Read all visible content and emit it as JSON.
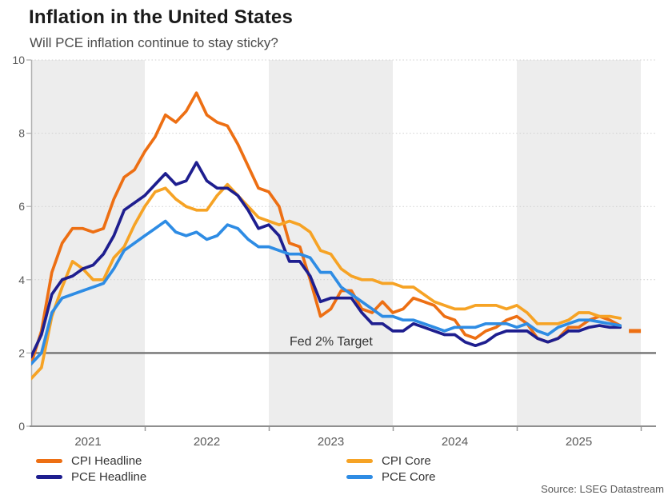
{
  "header": {
    "title": "Inflation in the United States",
    "subtitle": "Will PCE inflation continue to stay sticky?"
  },
  "source": "Source: LSEG Datastream",
  "chart_data": {
    "type": "line",
    "x_unit": "month",
    "x_start": "2021-01",
    "years": [
      "2021",
      "2022",
      "2023",
      "2024",
      "2025"
    ],
    "ylim": [
      0,
      10
    ],
    "yticks": [
      0,
      2,
      4,
      6,
      8,
      10
    ],
    "grid": "dotted-horizontal",
    "legend_position": "bottom",
    "band_colors": {
      "shaded": "#EDEDED",
      "plain": "#FFFFFF"
    },
    "axis_color": "#9A9A9A",
    "label_color": "#595959",
    "target_line": {
      "value": 2,
      "label": "Fed 2% Target",
      "color": "#737373"
    },
    "series": [
      {
        "name": "CPI Headline",
        "color": "#ED6F13",
        "values": [
          1.4,
          1.7,
          2.6,
          4.2,
          5.0,
          5.4,
          5.4,
          5.3,
          5.4,
          6.2,
          6.8,
          7.0,
          7.5,
          7.9,
          8.5,
          8.3,
          8.6,
          9.1,
          8.5,
          8.3,
          8.2,
          7.7,
          7.1,
          6.5,
          6.4,
          6.0,
          5.0,
          4.9,
          4.0,
          3.0,
          3.2,
          3.7,
          3.7,
          3.2,
          3.1,
          3.4,
          3.1,
          3.2,
          3.5,
          3.4,
          3.3,
          3.0,
          2.9,
          2.5,
          2.4,
          2.6,
          2.7,
          2.9,
          3.0,
          2.8,
          2.4,
          2.3,
          2.4,
          2.7,
          2.7,
          2.9,
          3.0,
          2.9,
          2.75
        ],
        "end_dash": {
          "month_index": 59,
          "value": 2.6
        }
      },
      {
        "name": "CPI Core",
        "color": "#F6A325",
        "values": [
          1.4,
          1.3,
          1.6,
          3.0,
          3.8,
          4.5,
          4.3,
          4.0,
          4.0,
          4.6,
          4.9,
          5.5,
          6.0,
          6.4,
          6.5,
          6.2,
          6.0,
          5.9,
          5.9,
          6.3,
          6.6,
          6.3,
          6.0,
          5.7,
          5.6,
          5.5,
          5.6,
          5.5,
          5.3,
          4.8,
          4.7,
          4.3,
          4.1,
          4.0,
          4.0,
          3.9,
          3.9,
          3.8,
          3.8,
          3.6,
          3.4,
          3.3,
          3.2,
          3.2,
          3.3,
          3.3,
          3.3,
          3.2,
          3.3,
          3.1,
          2.8,
          2.8,
          2.8,
          2.9,
          3.1,
          3.1,
          3.0,
          3.0,
          2.95
        ]
      },
      {
        "name": "PCE Headline",
        "color": "#1E1E8F",
        "values": [
          1.6,
          1.9,
          2.5,
          3.6,
          4.0,
          4.1,
          4.3,
          4.4,
          4.7,
          5.2,
          5.9,
          6.1,
          6.3,
          6.6,
          6.9,
          6.6,
          6.7,
          7.2,
          6.7,
          6.5,
          6.5,
          6.3,
          5.9,
          5.4,
          5.5,
          5.2,
          4.5,
          4.5,
          4.1,
          3.4,
          3.5,
          3.5,
          3.5,
          3.1,
          2.8,
          2.8,
          2.6,
          2.6,
          2.8,
          2.7,
          2.6,
          2.5,
          2.5,
          2.3,
          2.2,
          2.3,
          2.5,
          2.6,
          2.6,
          2.6,
          2.4,
          2.3,
          2.4,
          2.6,
          2.6,
          2.7,
          2.75,
          2.7,
          2.7
        ]
      },
      {
        "name": "PCE Core",
        "color": "#2E8CE4",
        "values": [
          1.7,
          1.7,
          2.0,
          3.1,
          3.5,
          3.6,
          3.7,
          3.8,
          3.9,
          4.3,
          4.8,
          5.0,
          5.2,
          5.4,
          5.6,
          5.3,
          5.2,
          5.3,
          5.1,
          5.2,
          5.5,
          5.4,
          5.1,
          4.9,
          4.9,
          4.8,
          4.7,
          4.7,
          4.6,
          4.2,
          4.2,
          3.8,
          3.6,
          3.4,
          3.2,
          3.0,
          3.0,
          2.9,
          2.9,
          2.8,
          2.7,
          2.6,
          2.7,
          2.7,
          2.7,
          2.8,
          2.8,
          2.8,
          2.7,
          2.8,
          2.6,
          2.5,
          2.7,
          2.8,
          2.9,
          2.9,
          2.85,
          2.8,
          2.75
        ]
      }
    ]
  }
}
